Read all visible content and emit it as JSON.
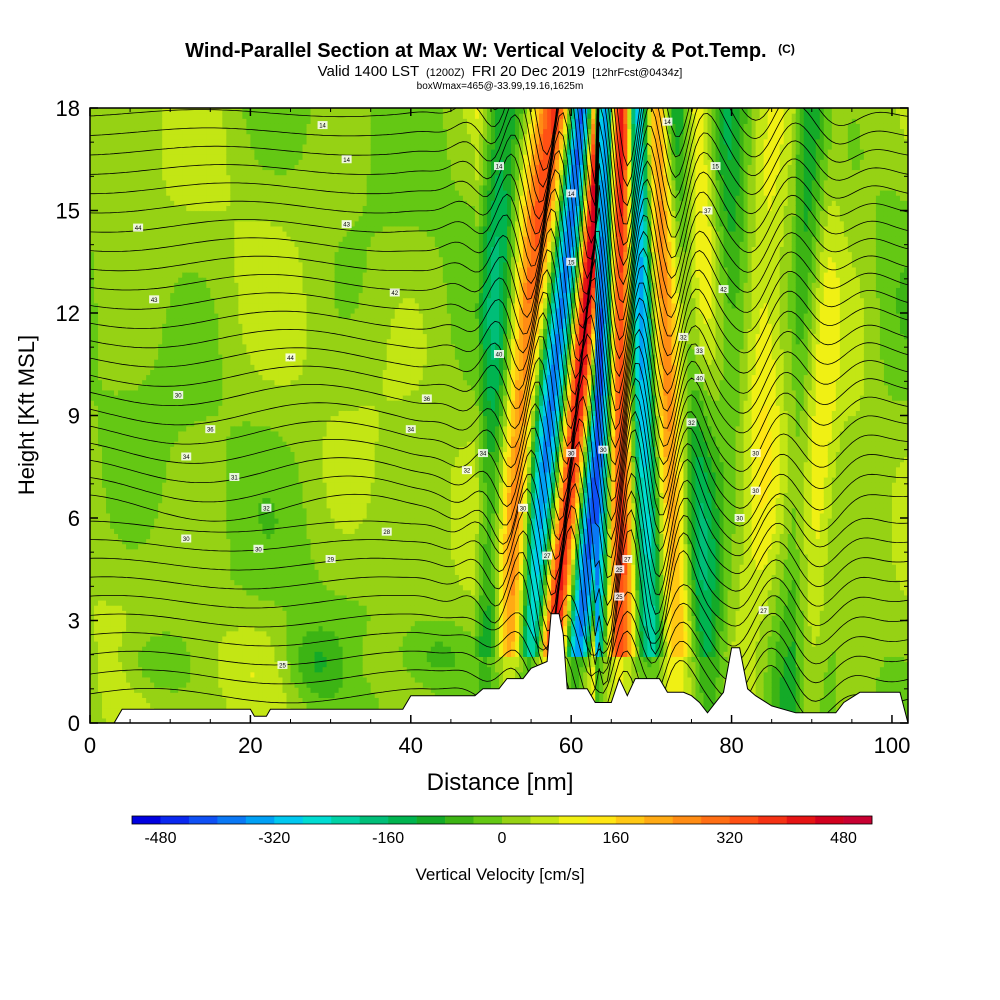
{
  "chart_data": {
    "type": "heatmap",
    "title": "Wind-Parallel Section at Max W: Vertical Velocity & Pot.Temp.",
    "title_mark": "(C)",
    "subtitle_main_a": "Valid 1400 LST",
    "subtitle_small_a": "(1200Z)",
    "subtitle_main_b": "FRI 20 Dec 2019",
    "subtitle_small_b": "[12hrFcst@0434z]",
    "subtitle_line2": "boxWmax=465@-33.99,19.16,1625m",
    "xlabel": "Distance [nm]",
    "ylabel": "Height [Kft MSL]",
    "xlim": [
      0,
      102
    ],
    "ylim": [
      0,
      18
    ],
    "x_ticks": [
      0,
      20,
      40,
      60,
      80,
      100
    ],
    "y_ticks": [
      0,
      3,
      6,
      9,
      12,
      15,
      18
    ],
    "colorbar": {
      "label": "Vertical Velocity [cm/s]",
      "range": [
        -520,
        520
      ],
      "step": 40,
      "tick_values": [
        -480,
        -320,
        -160,
        0,
        160,
        320,
        480
      ],
      "tick_labels": [
        "-480",
        "-320",
        "-160",
        "0",
        "160",
        "320",
        "480"
      ],
      "colors": [
        "#0000e0",
        "#0a28f0",
        "#0f50f5",
        "#0a78f5",
        "#00a0f5",
        "#00c8f0",
        "#00dcd2",
        "#00d2a5",
        "#00be78",
        "#00b450",
        "#14aa28",
        "#3cb414",
        "#64c814",
        "#96d214",
        "#c3e614",
        "#f0f014",
        "#ffe614",
        "#ffc814",
        "#ffaa14",
        "#ff8c14",
        "#ff6e14",
        "#ff5014",
        "#f53214",
        "#e61414",
        "#d2001e",
        "#c80032"
      ]
    },
    "terrain_kft": [
      [
        0,
        0
      ],
      [
        3,
        0
      ],
      [
        4,
        0.4
      ],
      [
        20,
        0.4
      ],
      [
        20.5,
        0.2
      ],
      [
        22,
        0.2
      ],
      [
        22.5,
        0.4
      ],
      [
        39,
        0.4
      ],
      [
        40,
        0.8
      ],
      [
        48,
        0.8
      ],
      [
        49,
        1.0
      ],
      [
        51,
        1.0
      ],
      [
        52,
        1.3
      ],
      [
        54,
        1.3
      ],
      [
        55,
        1.6
      ],
      [
        57,
        1.8
      ],
      [
        57.5,
        3.2
      ],
      [
        58.5,
        3.2
      ],
      [
        59,
        2.6
      ],
      [
        59.5,
        1.0
      ],
      [
        60,
        1.0
      ],
      [
        62,
        1.0
      ],
      [
        63,
        0.6
      ],
      [
        65,
        0.6
      ],
      [
        66,
        1.3
      ],
      [
        67,
        0.8
      ],
      [
        68,
        1.3
      ],
      [
        71,
        1.3
      ],
      [
        72,
        0.9
      ],
      [
        74,
        0.9
      ],
      [
        75,
        0.8
      ],
      [
        76,
        0.6
      ],
      [
        77,
        0.3
      ],
      [
        79,
        0.9
      ],
      [
        80,
        2.2
      ],
      [
        81,
        2.2
      ],
      [
        82,
        1.0
      ],
      [
        83,
        0.8
      ],
      [
        85,
        0.5
      ],
      [
        88,
        0.3
      ],
      [
        93,
        0.3
      ],
      [
        94,
        0.6
      ],
      [
        96,
        0.9
      ],
      [
        101,
        0.9
      ],
      [
        102,
        0
      ]
    ],
    "theta_labels": [
      {
        "x": 29,
        "y": 17.5,
        "text": "14"
      },
      {
        "x": 32,
        "y": 16.5,
        "text": "14"
      },
      {
        "x": 51,
        "y": 16.3,
        "text": "14"
      },
      {
        "x": 72,
        "y": 17.6,
        "text": "14"
      },
      {
        "x": 78,
        "y": 16.3,
        "text": "15"
      },
      {
        "x": 6,
        "y": 14.5,
        "text": "44"
      },
      {
        "x": 32,
        "y": 14.6,
        "text": "43"
      },
      {
        "x": 77,
        "y": 15.0,
        "text": "37"
      },
      {
        "x": 8,
        "y": 12.4,
        "text": "43"
      },
      {
        "x": 38,
        "y": 12.6,
        "text": "42"
      },
      {
        "x": 79,
        "y": 12.7,
        "text": "42"
      },
      {
        "x": 25,
        "y": 10.7,
        "text": "44"
      },
      {
        "x": 51,
        "y": 10.8,
        "text": "40"
      },
      {
        "x": 74,
        "y": 11.3,
        "text": "32"
      },
      {
        "x": 76,
        "y": 10.9,
        "text": "33"
      },
      {
        "x": 76,
        "y": 10.1,
        "text": "40"
      },
      {
        "x": 11,
        "y": 9.6,
        "text": "30"
      },
      {
        "x": 42,
        "y": 9.5,
        "text": "36"
      },
      {
        "x": 15,
        "y": 8.6,
        "text": "36"
      },
      {
        "x": 40,
        "y": 8.6,
        "text": "34"
      },
      {
        "x": 75,
        "y": 8.8,
        "text": "32"
      },
      {
        "x": 12,
        "y": 7.8,
        "text": "34"
      },
      {
        "x": 49,
        "y": 7.9,
        "text": "34"
      },
      {
        "x": 83,
        "y": 7.9,
        "text": "30"
      },
      {
        "x": 18,
        "y": 7.2,
        "text": "31"
      },
      {
        "x": 47,
        "y": 7.4,
        "text": "32"
      },
      {
        "x": 83,
        "y": 6.8,
        "text": "30"
      },
      {
        "x": 22,
        "y": 6.3,
        "text": "32"
      },
      {
        "x": 54,
        "y": 6.3,
        "text": "30"
      },
      {
        "x": 81,
        "y": 6.0,
        "text": "30"
      },
      {
        "x": 12,
        "y": 5.4,
        "text": "30"
      },
      {
        "x": 37,
        "y": 5.6,
        "text": "28"
      },
      {
        "x": 21,
        "y": 5.1,
        "text": "30"
      },
      {
        "x": 30,
        "y": 4.8,
        "text": "29"
      },
      {
        "x": 57,
        "y": 4.9,
        "text": "27"
      },
      {
        "x": 67,
        "y": 4.8,
        "text": "27"
      },
      {
        "x": 66,
        "y": 4.5,
        "text": "25"
      },
      {
        "x": 66,
        "y": 3.7,
        "text": "25"
      },
      {
        "x": 84,
        "y": 3.3,
        "text": "27"
      },
      {
        "x": 24,
        "y": 1.7,
        "text": "25"
      },
      {
        "x": 60,
        "y": 7.9,
        "text": "30"
      },
      {
        "x": 64,
        "y": 8.0,
        "text": "30"
      },
      {
        "x": 60,
        "y": 15.5,
        "text": "14"
      },
      {
        "x": 60,
        "y": 13.5,
        "text": "15"
      }
    ]
  }
}
